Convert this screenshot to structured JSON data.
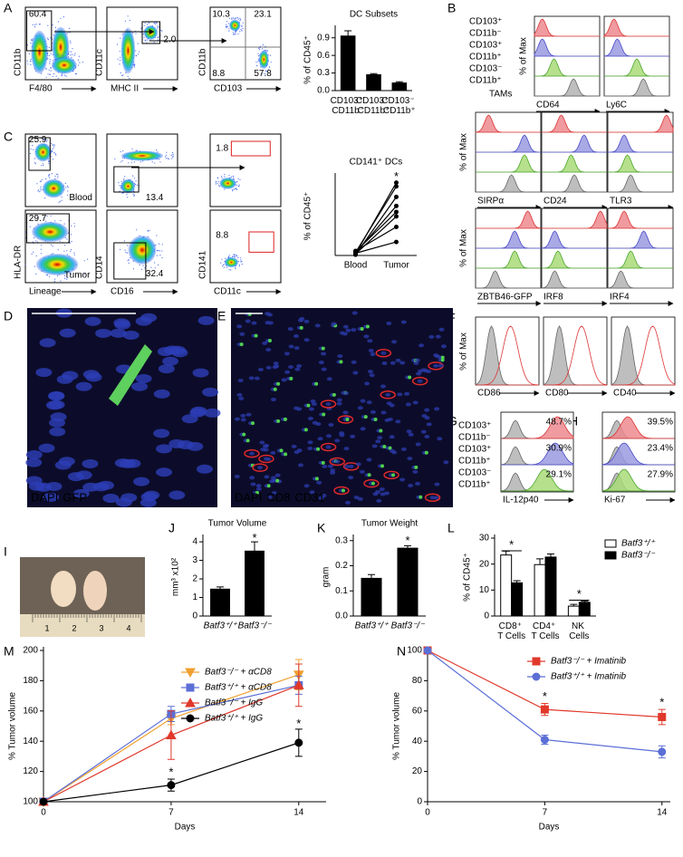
{
  "panel_labels": [
    "A",
    "B",
    "C",
    "D",
    "E",
    "F",
    "G",
    "H",
    "I",
    "J",
    "K",
    "L",
    "M",
    "N"
  ],
  "flow_plots": [
    {
      "xlabel": "F4/80",
      "ylabel": "CD11b",
      "gates": [
        "60.4"
      ]
    },
    {
      "xlabel": "MHC II",
      "ylabel": "CD11c",
      "gates": [
        "2.0"
      ]
    },
    {
      "xlabel": "CD103",
      "ylabel": "CD11b",
      "gates": [
        "10.3",
        "23.1",
        "8.8",
        "57.8"
      ]
    },
    {
      "gates": [
        "25.9",
        "Blood"
      ]
    },
    {
      "gates": [
        "13.4"
      ]
    },
    {
      "gates": [
        "1.8"
      ]
    },
    {
      "xlabel": "Lineage",
      "ylabel": "HLA-DR",
      "gates": [
        "29.7",
        "Tumor"
      ]
    },
    {
      "xlabel": "CD16",
      "ylabel": "CD14",
      "gates": [
        "32.4"
      ]
    },
    {
      "xlabel": "CD11c",
      "ylabel": "CD141",
      "gates": [
        "8.8"
      ]
    }
  ],
  "histograms": {
    "legend": [
      "CD103⁺",
      "CD11b⁻",
      "CD103⁺",
      "CD11b⁺",
      "CD103⁻",
      "CD11b⁺"
    ],
    "legend_note": "TAMs",
    "ylabel": "% of Max",
    "markers": [
      "CD64",
      "Ly6C",
      "SIRPα",
      "CD24",
      "TLR3",
      "ZBTB46-GFP",
      "IRF8",
      "IRF4"
    ],
    "F_markers": [
      "CD86",
      "CD80",
      "CD40"
    ],
    "G_marker": "IL-12p40",
    "G_values": [
      "48.7%",
      "30.9%",
      "29.1%"
    ],
    "H_marker": "Ki-67",
    "H_values": [
      "39.5%",
      "23.4%",
      "27.9%"
    ]
  },
  "images": [
    {
      "channels": [
        "DAPI",
        "GFP"
      ]
    },
    {
      "channels": [
        "DAPI",
        "CD8",
        "CD31"
      ]
    }
  ],
  "ruler": [
    "1",
    "2",
    "3",
    "4"
  ],
  "chart_data": [
    {
      "type": "bar",
      "title": "DC Subsets",
      "ylabel": "% of CD45⁺",
      "categories": [
        "CD103⁺ CD11b⁻",
        "CD103⁺ CD11b⁺",
        "CD103⁻ CD11b⁺"
      ],
      "values": [
        0.93,
        0.27,
        0.13
      ],
      "errors": [
        0.09,
        0.02,
        0.02
      ],
      "color": "#000000",
      "ylim": [
        0,
        1.05
      ],
      "yticks": [
        {
          "value": 0,
          "label": "0.0"
        },
        0.3,
        0.6,
        0.9
      ]
    },
    {
      "type": "line",
      "title": "CD141⁺ DCs",
      "ylabel": "% of CD45⁺",
      "categories": [
        "Blood",
        "Tumor"
      ],
      "series": [
        {
          "color": "#000000",
          "values": [
            0.02,
            0.97
          ]
        },
        {
          "color": "#000000",
          "values": [
            0.04,
            0.92
          ]
        },
        {
          "color": "#000000",
          "values": [
            0.01,
            0.78
          ]
        },
        {
          "color": "#000000",
          "values": [
            0.03,
            0.66
          ]
        },
        {
          "color": "#000000",
          "values": [
            0.05,
            0.58
          ]
        },
        {
          "color": "#000000",
          "values": [
            0.02,
            0.52
          ]
        },
        {
          "color": "#000000",
          "values": [
            0.06,
            0.38
          ]
        },
        {
          "color": "#000000",
          "values": [
            0.03,
            0.18
          ]
        }
      ],
      "ylim": [
        0,
        1.05
      ],
      "annotations": [
        "*"
      ]
    },
    {
      "type": "bar",
      "title": "Tumor Volume",
      "ylabel": "mm³ x10²",
      "categories": [
        "Batf3⁺/⁺",
        "Batf3⁻/⁻"
      ],
      "category_style": "italic",
      "values": [
        1.45,
        3.5
      ],
      "errors": [
        0.12,
        0.5
      ],
      "color": "#000000",
      "ylim": [
        0,
        4.2
      ],
      "yticks": [
        0,
        1,
        2,
        3,
        4
      ],
      "annotations": [
        "*"
      ]
    },
    {
      "type": "bar",
      "title": "Tumor Weight",
      "ylabel": "gram",
      "categories": [
        "Batf3⁺/⁺",
        "Batf3⁻/⁻"
      ],
      "category_style": "italic",
      "values": [
        0.15,
        0.27
      ],
      "errors": [
        0.015,
        0.01
      ],
      "color": "#000000",
      "ylim": [
        0,
        0.31
      ],
      "yticks": [
        {
          "value": 0,
          "label": "0.0"
        },
        0.1,
        0.2,
        0.3
      ],
      "annotations": [
        "*"
      ]
    },
    {
      "type": "bar",
      "ylabel": "% of CD45⁺",
      "categories": [
        "CD8⁺ T Cells",
        "CD4⁺ T Cells",
        "NK Cells"
      ],
      "legend_style": "italic",
      "series": [
        {
          "name": "Batf3⁺/⁺",
          "color": "#ffffff",
          "values": [
            23.5,
            19.8,
            3.8
          ],
          "errors": [
            1.5,
            2.2,
            0.7
          ]
        },
        {
          "name": "Batf3⁻/⁻",
          "color": "#000000",
          "values": [
            12.8,
            22.7,
            5.3
          ],
          "errors": [
            0.8,
            1.2,
            0.5
          ]
        }
      ],
      "ylim": [
        0,
        30
      ],
      "yticks": [
        0,
        10,
        20,
        30
      ],
      "annotations": [
        "*",
        "*"
      ]
    },
    {
      "type": "line",
      "xlabel": "Days",
      "ylabel": "% Tumor volume",
      "x": [
        0,
        7,
        14
      ],
      "legend_style": "italic",
      "series": [
        {
          "name": "Batf3⁻/⁻ + αCD8",
          "color": "#f0a030",
          "marker": "triangle-down",
          "values": [
            100,
            155,
            184
          ],
          "errors": [
            0,
            4,
            10
          ]
        },
        {
          "name": "Batf3⁺/⁺ + αCD8",
          "color": "#5b6fd6",
          "marker": "square",
          "values": [
            100,
            158,
            177
          ],
          "errors": [
            0,
            5,
            6
          ]
        },
        {
          "name": "Batf3⁻/⁻ + IgG",
          "color": "#e0392b",
          "marker": "triangle-up",
          "values": [
            100,
            144,
            177
          ],
          "errors": [
            0,
            16,
            14
          ]
        },
        {
          "name": "Batf3⁺/⁺ + IgG",
          "color": "#000000",
          "marker": "circle",
          "values": [
            100,
            111,
            139
          ],
          "errors": [
            0,
            4,
            9
          ]
        }
      ],
      "xlim": [
        0,
        15.5
      ],
      "xticks": [
        0,
        7,
        14
      ],
      "ylim": [
        100,
        200
      ],
      "yticks": [
        100,
        120,
        140,
        160,
        180,
        200
      ],
      "annotations": [
        "*",
        "*"
      ]
    },
    {
      "type": "line",
      "xlabel": "Days",
      "ylabel": "% Tumor volume",
      "x": [
        0,
        7,
        14
      ],
      "legend_style": "italic",
      "series": [
        {
          "name": "Batf3⁻/⁻ + Imatinib",
          "color": "#e0392b",
          "marker": "square",
          "values": [
            100,
            61,
            56
          ],
          "errors": [
            0,
            4,
            5
          ]
        },
        {
          "name": "Batf3⁺/⁺ + Imatinib",
          "color": "#5b6fd6",
          "marker": "circle",
          "values": [
            100,
            41,
            33
          ],
          "errors": [
            0,
            3,
            4
          ]
        }
      ],
      "xlim": [
        0,
        14.5
      ],
      "xticks": [
        0,
        7,
        14
      ],
      "ylim": [
        0,
        100
      ],
      "yticks": [
        0,
        20,
        40,
        60,
        80,
        100
      ],
      "annotations": [
        "*",
        "*"
      ]
    }
  ]
}
